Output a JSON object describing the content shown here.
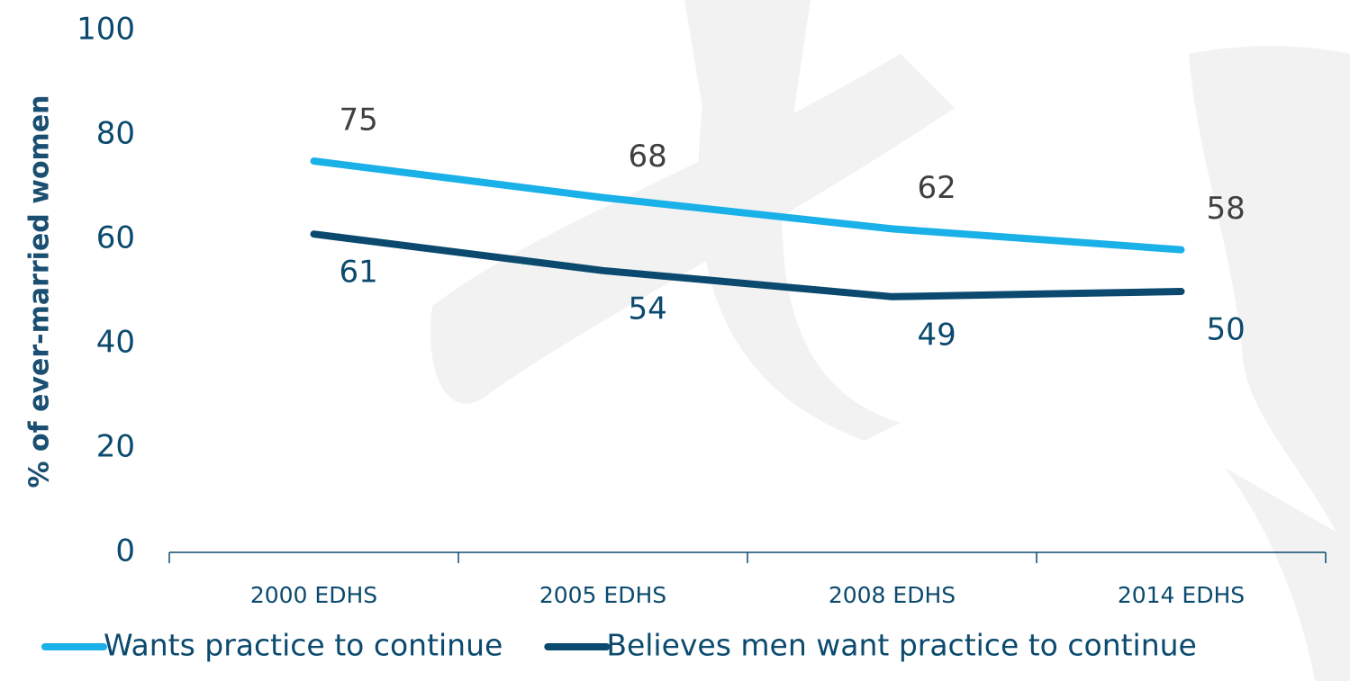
{
  "chart_data": {
    "type": "line",
    "y_label": "% of ever-married women",
    "categories": [
      "2000 EDHS",
      "2005 EDHS",
      "2008 EDHS",
      "2014 EDHS"
    ],
    "series": [
      {
        "name": "Wants practice to continue",
        "color": "#1ab0e8",
        "values": [
          75,
          68,
          62,
          58
        ]
      },
      {
        "name": "Believes men want practice to continue",
        "color": "#0b4a6e",
        "values": [
          61,
          54,
          49,
          50
        ]
      }
    ],
    "ylim": [
      0,
      100
    ],
    "yticks": [
      0,
      20,
      40,
      60,
      80,
      100
    ],
    "grid": false,
    "legend": "bottom"
  }
}
